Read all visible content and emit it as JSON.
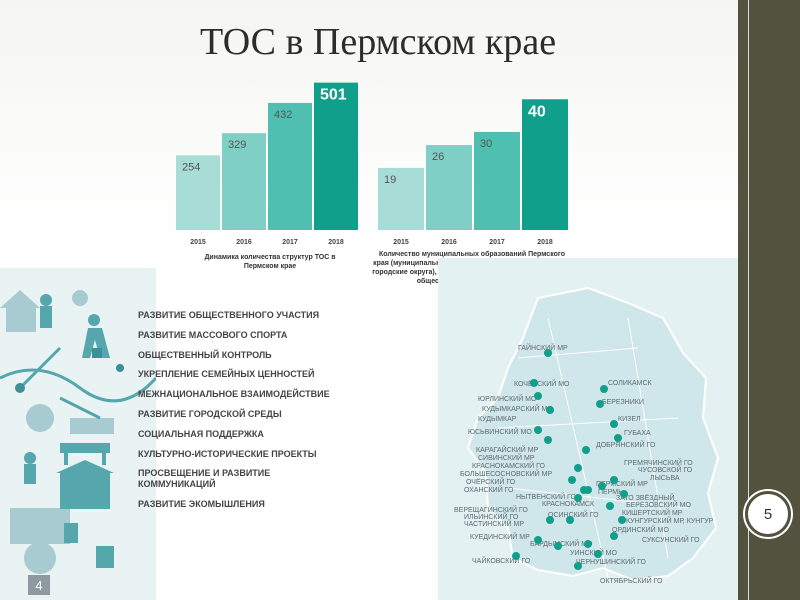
{
  "slide": {
    "title": "ТОС в Пермском крае",
    "page_number": "5",
    "infographic_badge": "4"
  },
  "chart_data": [
    {
      "type": "bar",
      "title": "Динамика количества структур ТОС в Пермском крае",
      "categories": [
        "2015",
        "2016",
        "2017",
        "2018"
      ],
      "values": [
        254,
        329,
        432,
        501
      ],
      "ylim": [
        0,
        510
      ],
      "colors": [
        "#a8dcd6",
        "#7fcfc6",
        "#4fbfb1",
        "#0f9f8a"
      ]
    },
    {
      "type": "bar",
      "title": "Количество муниципальных образований Пермского края (муниципальные районы, муниципальные округа и городские округа), где осуществляется территориальное общественное самоуправление",
      "categories": [
        "2015",
        "2016",
        "2017",
        "2018"
      ],
      "values": [
        19,
        26,
        30,
        40
      ],
      "ylim": [
        0,
        41
      ],
      "colors": [
        "#a8dcd6",
        "#7fcfc6",
        "#4fbfb1",
        "#0f9f8a"
      ]
    }
  ],
  "areas": [
    "РАЗВИТИЕ ОБЩЕСТВЕННОГО УЧАСТИЯ",
    "РАЗВИТИЕ МАССОВОГО СПОРТА",
    "ОБЩЕСТВЕННЫЙ КОНТРОЛЬ",
    "УКРЕПЛЕНИЕ СЕМЕЙНЫХ ЦЕННОСТЕЙ",
    "МЕЖНАЦИОНАЛЬНОЕ ВЗАИМОДЕЙСТВИЕ",
    "РАЗВИТИЕ ГОРОДСКОЙ СРЕДЫ",
    "СОЦИАЛЬНАЯ ПОДДЕРЖКА",
    "КУЛЬТУРНО-ИСТОРИЧЕСКИЕ ПРОЕКТЫ",
    "ПРОСВЕЩЕНИЕ И РАЗВИТИЕ КОММУНИКАЦИЙ",
    "РАЗВИТИЕ ЭКОМЫШЛЕНИЯ"
  ],
  "map": {
    "labels": [
      "ГАЙНСКИЙ МР",
      "КОЧЁВСКИЙ МО",
      "ЮРЛИНСКИЙ МО",
      "КУДЫМКАРСКИЙ МО",
      "КУДЫМКАР",
      "ЮСЬВИНСКИЙ МО",
      "СОЛИКАМСК",
      "БЕРЕЗНИКИ",
      "КИЗЕЛ",
      "ГУБАХА",
      "ДОБРЯНСКИЙ ГО",
      "КАРАГАЙСКИЙ МР",
      "СИВИНСКИЙ МР",
      "КРАСНОКАМСКИЙ ГО",
      "БОЛЬШЕСОСНОВСКИЙ МР",
      "ОЧЁРСКИЙ ГО",
      "ОХАНСКИЙ ГО",
      "НЫТВЕНСКИЙ ГО",
      "ГРЕМЯЧИНСКИЙ ГО",
      "ЧУСОВСКОЙ ГО",
      "ЛЫСЬВА",
      "ПЕРМСКИЙ МР",
      "ПЕРМЬ",
      "ЗАТО ЗВЁЗДНЫЙ",
      "БЕРЕЗОВСКИЙ МО",
      "КРАСНОКАМСК",
      "ВЕРЕЩАГИНСКИЙ ГО",
      "ИЛЬИНСКИЙ ГО",
      "ОСИНСКИЙ ГО",
      "КИШЕРТСКИЙ МР",
      "КУНГУРСКИЙ МР, КУНГУР",
      "ЧАСТИНСКИЙ МР",
      "ОРДИНСКИЙ МО",
      "КУЕДИНСКИЙ МР",
      "СУКСУНСКИЙ ГО",
      "БАРДЫМСКИЙ МО",
      "УИНСКИЙ МО",
      "ЧАЙКОВСКИЙ ГО",
      "ЧЕРНУШИНСКИЙ ГО",
      "ОКТЯБРЬСКИЙ ГО"
    ]
  }
}
